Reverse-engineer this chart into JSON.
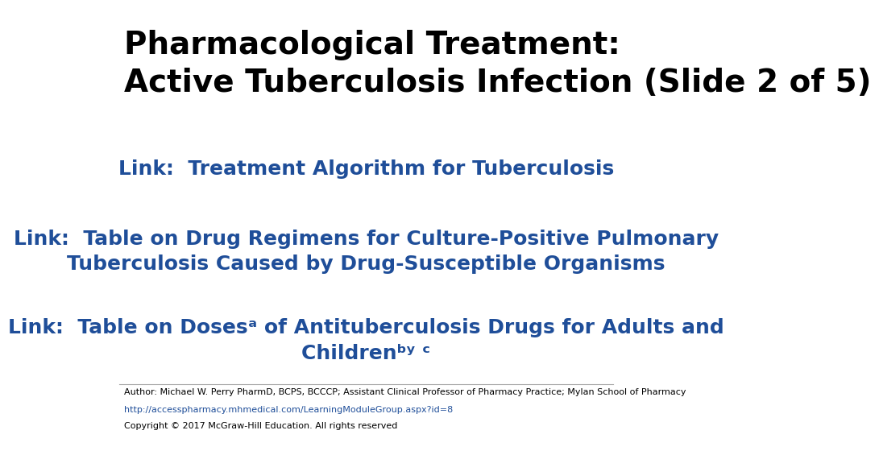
{
  "bg_color": "#ffffff",
  "title_line1": "Pharmacological Treatment:",
  "title_line2": "Active Tuberculosis Infection (Slide 2 of 5)",
  "title_color": "#000000",
  "title_fontsize": 28,
  "link_color": "#1f4e99",
  "link_fontsize": 18,
  "link1_text": "Link:  Treatment Algorithm for Tuberculosis",
  "link2_text": "Link:  Table on Drug Regimens for Culture-Positive Pulmonary\nTuberculosis Caused by Drug-Susceptible Organisms",
  "link3_line1": "Link:  Table on Dosesᵃ of Antituberculosis Drugs for Adults and",
  "link3_line2": "Childrenᵇʸ ᶜ",
  "footer_author": "Author: Michael W. Perry PharmD, BCPS, BCCCP; Assistant Clinical Professor of Pharmacy Practice; Mylan School of Pharmacy",
  "footer_url": "http://accesspharmacy.mhmedical.com/LearningModuleGroup.aspx?id=8",
  "footer_copyright": "Copyright © 2017 McGraw-Hill Education. All rights reserved",
  "footer_color": "#000000",
  "footer_url_color": "#1f4e99",
  "footer_fontsize": 8,
  "separator_color": "#aaaaaa"
}
